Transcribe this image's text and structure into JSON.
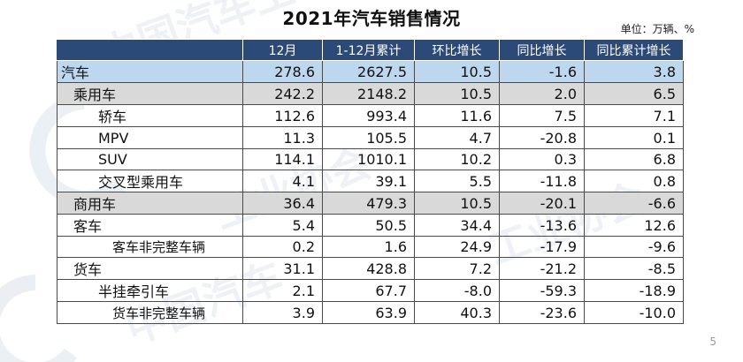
{
  "title": "2021年汽车销售情况",
  "unit": "单位：万辆、%",
  "page_number": "5",
  "watermark_text": "中国汽车工业协会",
  "columns": [
    "",
    "12月",
    "1-12月累计",
    "环比增长",
    "同比增长",
    "同比累计增长"
  ],
  "rows": [
    {
      "name": "汽车",
      "level": 0,
      "style": "main",
      "values": [
        "278.6",
        "2627.5",
        "10.5",
        "-1.6",
        "3.8"
      ]
    },
    {
      "name": "乘用车",
      "level": 1,
      "style": "sub",
      "values": [
        "242.2",
        "2148.2",
        "10.5",
        "2.0",
        "6.5"
      ]
    },
    {
      "name": "轿车",
      "level": 2,
      "style": "plain",
      "values": [
        "112.6",
        "993.4",
        "11.6",
        "7.5",
        "7.1"
      ]
    },
    {
      "name": "MPV",
      "level": 2,
      "style": "plain",
      "values": [
        "11.3",
        "105.5",
        "4.7",
        "-20.8",
        "0.1"
      ]
    },
    {
      "name": "SUV",
      "level": 2,
      "style": "plain",
      "values": [
        "114.1",
        "1010.1",
        "10.2",
        "0.3",
        "6.8"
      ]
    },
    {
      "name": "交叉型乘用车",
      "level": 2,
      "style": "plain",
      "values": [
        "4.1",
        "39.1",
        "5.5",
        "-11.8",
        "0.8"
      ]
    },
    {
      "name": "商用车",
      "level": 1,
      "style": "sub",
      "values": [
        "36.4",
        "479.3",
        "10.5",
        "-20.1",
        "-6.6"
      ]
    },
    {
      "name": "客车",
      "level": 1,
      "style": "plain",
      "values": [
        "5.4",
        "50.5",
        "34.4",
        "-13.6",
        "12.6"
      ]
    },
    {
      "name": "客车非完整车辆",
      "level": 3,
      "style": "plain",
      "values": [
        "0.2",
        "1.6",
        "24.9",
        "-17.9",
        "-9.6"
      ]
    },
    {
      "name": "货车",
      "level": 1,
      "style": "plain",
      "values": [
        "31.1",
        "428.8",
        "7.2",
        "-21.2",
        "-8.5"
      ]
    },
    {
      "name": "半挂牵引车",
      "level": 2,
      "style": "plain",
      "values": [
        "2.1",
        "67.7",
        "-8.0",
        "-59.3",
        "-18.9"
      ]
    },
    {
      "name": "货车非完整车辆",
      "level": 3,
      "style": "plain",
      "values": [
        "3.9",
        "63.9",
        "40.3",
        "-23.6",
        "-10.0"
      ]
    }
  ]
}
